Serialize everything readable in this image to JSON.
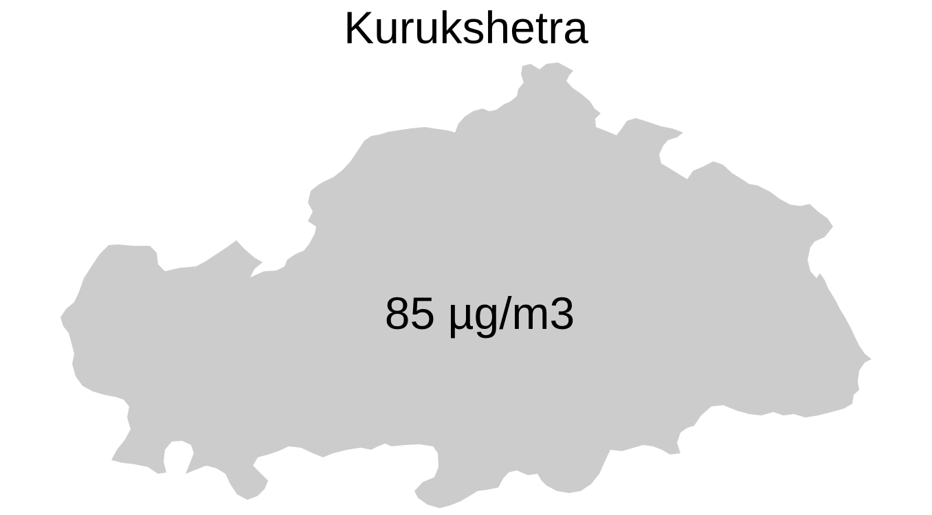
{
  "map": {
    "title": "Kurukshetra",
    "value_label": "85 µg/m3",
    "region_fill": "#cccccc",
    "background": "#ffffff"
  }
}
